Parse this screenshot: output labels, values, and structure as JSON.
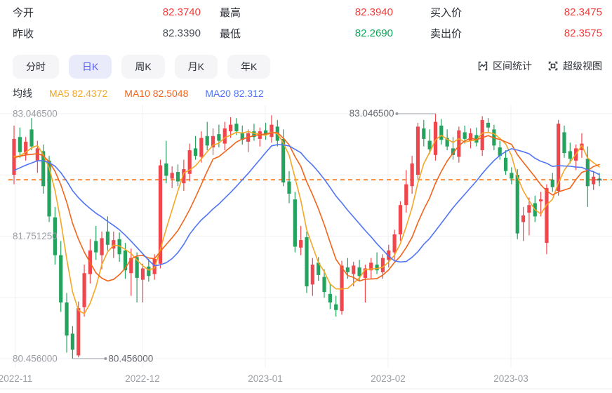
{
  "header": {
    "stats": [
      {
        "label": "今开",
        "value": "82.3740",
        "tone": "red"
      },
      {
        "label": "昨收",
        "value": "82.3390",
        "tone": "dark"
      },
      {
        "label": "最高",
        "value": "82.3940",
        "tone": "red"
      },
      {
        "label": "最低",
        "value": "82.2690",
        "tone": "green"
      },
      {
        "label": "买入价",
        "value": "82.3475",
        "tone": "red"
      },
      {
        "label": "卖出价",
        "value": "82.3575",
        "tone": "red"
      }
    ]
  },
  "tabs": [
    {
      "label": "分时",
      "active": false
    },
    {
      "label": "日K",
      "active": true
    },
    {
      "label": "周K",
      "active": false
    },
    {
      "label": "月K",
      "active": false
    },
    {
      "label": "年K",
      "active": false
    }
  ],
  "tools": [
    {
      "label": "区间统计"
    },
    {
      "label": "超级视图"
    }
  ],
  "ma_legend": {
    "title": "均线",
    "items": [
      {
        "name": "MA5",
        "value": "82.4372",
        "color": "#f5a623"
      },
      {
        "name": "MA10",
        "value": "82.5048",
        "color": "#f2641b"
      },
      {
        "name": "MA20",
        "value": "82.312",
        "color": "#4f74f5"
      }
    ]
  },
  "chart_data": {
    "type": "candlestick",
    "title": "",
    "x_labels": [
      "2022-11",
      "2022-12",
      "2023-01",
      "2023-02",
      "2023-03"
    ],
    "month_x": [
      22,
      203,
      378,
      553,
      728
    ],
    "y_axis_labels": [
      {
        "text": "83.046500",
        "price": 83.0465
      },
      {
        "text": "81.751250",
        "price": 81.75125
      },
      {
        "text": "80.456000",
        "price": 80.456
      }
    ],
    "grid_prices": [
      83.0465,
      82.398875,
      81.75125,
      81.103625,
      80.456
    ],
    "ylim": [
      80.456,
      83.0465
    ],
    "current_price_line": 82.3475,
    "annotations": [
      {
        "text": "83.046500",
        "price": 83.0465,
        "candle_index": 72,
        "position": "top"
      },
      {
        "text": "80.456000",
        "price": 80.456,
        "candle_index": 10,
        "position": "bottom"
      }
    ],
    "colors": {
      "up": "#f0464d",
      "down": "#23a35d",
      "ma5": "#f5a623",
      "ma10": "#f2641b",
      "ma20": "#4f74f5",
      "dashed": "#ff6a00",
      "grid": "#f2f2f5",
      "axis_text": "#9a9da4",
      "annotation_text": "#666a70",
      "annotation_line": "#9a9da4"
    },
    "ma_periods": [
      5,
      10,
      20
    ],
    "pre_closes": [
      82.05,
      82.1,
      82.18,
      82.25,
      82.2,
      82.28,
      82.35,
      82.3,
      82.42,
      82.5,
      82.55,
      82.48,
      82.6,
      82.66,
      82.58,
      82.52,
      82.6,
      82.55,
      82.48,
      82.55
    ],
    "candles": [
      [
        82.4,
        82.92,
        82.3,
        82.78
      ],
      [
        82.8,
        82.9,
        82.58,
        82.64
      ],
      [
        82.62,
        82.8,
        82.55,
        82.75
      ],
      [
        82.88,
        83.0,
        82.66,
        82.7
      ],
      [
        82.55,
        82.76,
        82.42,
        82.68
      ],
      [
        82.65,
        82.72,
        82.2,
        82.28
      ],
      [
        82.55,
        82.6,
        81.9,
        81.96
      ],
      [
        81.95,
        82.06,
        81.45,
        81.55
      ],
      [
        81.55,
        81.7,
        80.95,
        81.05
      ],
      [
        81.05,
        81.15,
        80.52,
        80.7
      ],
      [
        80.72,
        80.8,
        80.456,
        80.55
      ],
      [
        80.49,
        81.06,
        80.47,
        80.99
      ],
      [
        81.0,
        81.45,
        80.9,
        81.36
      ],
      [
        81.35,
        81.72,
        81.25,
        81.6
      ],
      [
        81.7,
        81.86,
        81.5,
        81.58
      ],
      [
        81.55,
        81.8,
        81.4,
        81.73
      ],
      [
        81.8,
        81.96,
        81.6,
        81.66
      ],
      [
        81.62,
        81.8,
        81.52,
        81.71
      ],
      [
        81.72,
        81.79,
        81.48,
        81.56
      ],
      [
        81.6,
        81.68,
        81.3,
        81.39
      ],
      [
        81.36,
        81.62,
        81.12,
        81.52
      ],
      [
        81.53,
        81.58,
        81.05,
        81.31
      ],
      [
        81.29,
        81.46,
        81.05,
        81.41
      ],
      [
        81.43,
        81.51,
        81.27,
        81.33
      ],
      [
        81.35,
        81.56,
        81.29,
        81.51
      ],
      [
        81.46,
        82.56,
        81.41,
        82.5
      ],
      [
        82.52,
        82.76,
        82.31,
        82.39
      ],
      [
        82.36,
        82.49,
        82.26,
        82.42
      ],
      [
        82.43,
        82.51,
        82.28,
        82.33
      ],
      [
        82.31,
        82.56,
        82.23,
        82.46
      ],
      [
        82.41,
        82.73,
        82.33,
        82.66
      ],
      [
        82.68,
        82.81,
        82.56,
        82.6
      ],
      [
        82.59,
        82.86,
        82.53,
        82.79
      ],
      [
        82.81,
        82.96,
        82.66,
        82.71
      ],
      [
        82.69,
        82.89,
        82.61,
        82.81
      ],
      [
        82.83,
        82.93,
        82.69,
        82.76
      ],
      [
        82.73,
        82.96,
        82.66,
        82.89
      ],
      [
        82.86,
        83.01,
        82.79,
        82.93
      ],
      [
        82.94,
        83.0,
        82.82,
        82.86
      ],
      [
        82.84,
        82.92,
        82.72,
        82.77
      ],
      [
        82.75,
        82.88,
        82.64,
        82.84
      ],
      [
        82.86,
        82.94,
        82.76,
        82.8
      ],
      [
        82.78,
        82.9,
        82.7,
        82.86
      ],
      [
        82.87,
        82.95,
        82.77,
        82.82
      ],
      [
        82.8,
        83.03,
        82.74,
        82.93
      ],
      [
        82.91,
        82.98,
        82.7,
        82.76
      ],
      [
        82.78,
        82.88,
        82.28,
        82.32
      ],
      [
        82.33,
        82.44,
        82.1,
        82.2
      ],
      [
        82.14,
        82.22,
        81.58,
        81.64
      ],
      [
        81.63,
        81.86,
        81.55,
        81.71
      ],
      [
        81.74,
        81.8,
        81.15,
        81.22
      ],
      [
        81.24,
        81.52,
        81.12,
        81.45
      ],
      [
        81.47,
        81.53,
        81.28,
        81.34
      ],
      [
        81.32,
        81.4,
        81.1,
        81.16
      ],
      [
        81.14,
        81.25,
        80.98,
        81.05
      ],
      [
        81.03,
        81.12,
        80.9,
        80.97
      ],
      [
        80.96,
        81.49,
        80.92,
        81.44
      ],
      [
        81.42,
        81.52,
        81.3,
        81.37
      ],
      [
        81.35,
        81.48,
        81.22,
        81.44
      ],
      [
        81.42,
        81.5,
        81.28,
        81.33
      ],
      [
        81.31,
        81.45,
        81.05,
        81.41
      ],
      [
        81.39,
        81.52,
        81.3,
        81.47
      ],
      [
        81.45,
        81.58,
        81.35,
        81.39
      ],
      [
        81.37,
        81.56,
        81.3,
        81.52
      ],
      [
        81.5,
        81.66,
        81.42,
        81.6
      ],
      [
        81.58,
        81.82,
        81.5,
        81.77
      ],
      [
        81.77,
        82.12,
        81.7,
        82.08
      ],
      [
        82.08,
        82.45,
        82.0,
        82.3
      ],
      [
        82.28,
        82.6,
        82.2,
        82.52
      ],
      [
        82.4,
        82.95,
        82.35,
        82.91
      ],
      [
        82.89,
        82.98,
        82.7,
        82.78
      ],
      [
        82.76,
        82.88,
        82.62,
        82.67
      ],
      [
        82.61,
        83.0465,
        82.55,
        82.96
      ],
      [
        82.92,
        82.99,
        82.72,
        82.77
      ],
      [
        82.79,
        82.88,
        82.66,
        82.7
      ],
      [
        82.68,
        82.8,
        82.56,
        82.61
      ],
      [
        82.59,
        82.91,
        82.53,
        82.87
      ],
      [
        82.85,
        82.92,
        82.73,
        82.78
      ],
      [
        82.76,
        82.89,
        82.68,
        82.84
      ],
      [
        82.82,
        82.9,
        82.7,
        82.74
      ],
      [
        82.66,
        83.02,
        82.6,
        82.98
      ],
      [
        82.95,
        83.0,
        82.85,
        82.9
      ],
      [
        82.88,
        82.93,
        82.66,
        82.71
      ],
      [
        82.69,
        82.76,
        82.56,
        82.6
      ],
      [
        82.58,
        82.66,
        82.4,
        82.44
      ],
      [
        82.42,
        82.48,
        82.3,
        82.36
      ],
      [
        82.4,
        82.46,
        81.72,
        81.78
      ],
      [
        81.9,
        82.06,
        81.7,
        81.97
      ],
      [
        82.0,
        82.16,
        81.76,
        82.08
      ],
      [
        82.1,
        82.18,
        81.9,
        81.96
      ],
      [
        82.12,
        82.22,
        81.96,
        82.14
      ],
      [
        81.68,
        82.3,
        81.56,
        82.26
      ],
      [
        82.35,
        82.42,
        82.22,
        82.27
      ],
      [
        82.23,
        82.98,
        82.18,
        82.94
      ],
      [
        82.85,
        82.92,
        82.58,
        82.63
      ],
      [
        82.65,
        82.74,
        82.52,
        82.57
      ],
      [
        82.55,
        82.72,
        82.45,
        82.68
      ],
      [
        82.66,
        82.84,
        82.58,
        82.73
      ],
      [
        82.57,
        82.7,
        82.06,
        82.28
      ],
      [
        82.3,
        82.44,
        82.24,
        82.38
      ],
      [
        82.36,
        82.42,
        82.28,
        82.345
      ]
    ]
  }
}
